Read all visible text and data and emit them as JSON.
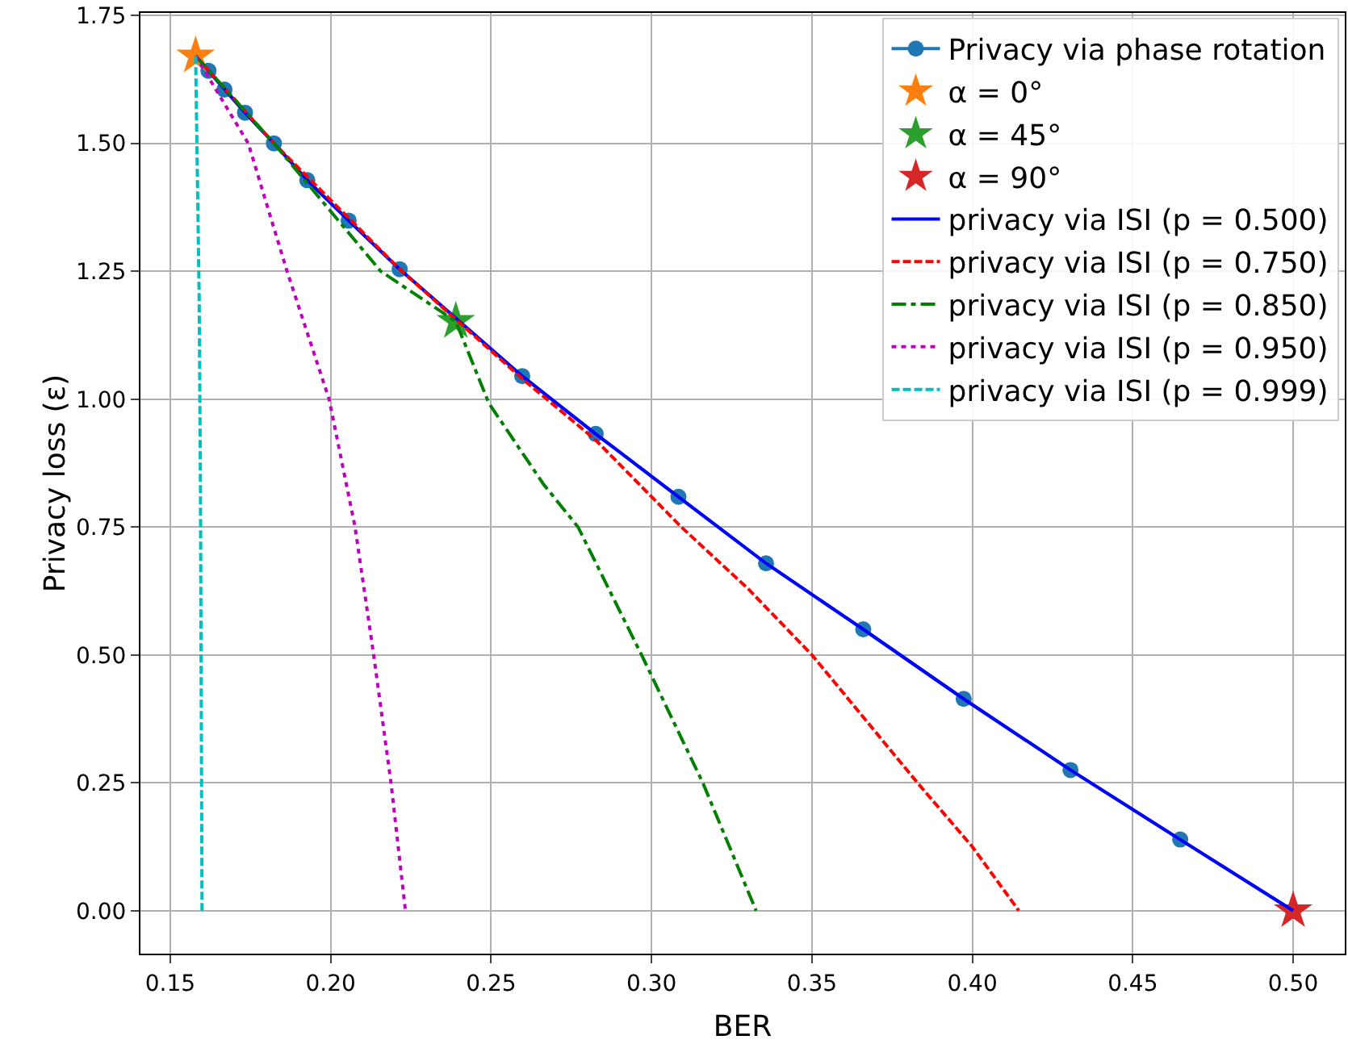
{
  "chart_data": {
    "type": "line",
    "xlabel": "BER",
    "ylabel": "Privacy loss (ε)",
    "xlim": [
      0.1407,
      0.5161
    ],
    "ylim": [
      -0.084,
      1.755
    ],
    "xticks": [
      0.15,
      {
        "value": 0.2,
        "label": "0.20"
      },
      0.25,
      {
        "value": 0.3,
        "label": "0.30"
      },
      0.35,
      {
        "value": 0.4,
        "label": "0.40"
      },
      0.45,
      {
        "value": 0.5,
        "label": "0.50"
      }
    ],
    "yticks": [
      {
        "value": 0,
        "label": "0.00"
      },
      {
        "value": 0.25,
        "label": "0.25"
      },
      {
        "value": 0.5,
        "label": "0.50"
      },
      {
        "value": 0.75,
        "label": "0.75"
      },
      {
        "value": 1,
        "label": "1.00"
      },
      {
        "value": 1.25,
        "label": "1.25"
      },
      {
        "value": 1.5,
        "label": "1.50"
      },
      {
        "value": 1.75,
        "label": "1.75"
      }
    ],
    "grid": true,
    "legend": "top right",
    "series": [
      {
        "name": "Privacy via phase rotation",
        "color": "#1f77b4",
        "marker": "circle",
        "line_style": "solid",
        "x": [
          0.1619,
          0.1669,
          0.1733,
          0.1823,
          0.1927,
          0.2056,
          0.2215,
          0.2597,
          0.2826,
          0.3084,
          0.3357,
          0.366,
          0.3973,
          0.4306,
          0.4648,
          0.5
        ],
        "values": [
          1.642,
          1.605,
          1.56,
          1.5,
          1.428,
          1.349,
          1.254,
          1.045,
          0.932,
          0.809,
          0.679,
          0.55,
          0.414,
          0.275,
          0.139,
          0
        ]
      },
      {
        "name": "α = 0°",
        "type": "scatter",
        "color": "#ff7f0e",
        "marker": "star",
        "x": [
          0.1579
        ],
        "values": [
          1.671
        ]
      },
      {
        "name": "α = 45°",
        "type": "scatter",
        "color": "#2ca02c",
        "marker": "star",
        "x": [
          0.239
        ],
        "values": [
          1.152
        ]
      },
      {
        "name": "α = 90°",
        "type": "scatter",
        "color": "#d62728",
        "marker": "star",
        "x": [
          0.5
        ],
        "values": [
          0
        ]
      },
      {
        "name": "privacy via ISI (p = 0.500)",
        "color": "#0000ff",
        "marker": "none",
        "line_style": "solid",
        "x": [
          0.1579,
          0.1619,
          0.1733,
          0.1823,
          0.1927,
          0.2056,
          0.2215,
          0.2597,
          0.2826,
          0.3084,
          0.3357,
          0.366,
          0.3973,
          0.4306,
          0.4648,
          0.5
        ],
        "values": [
          1.671,
          1.642,
          1.56,
          1.5,
          1.428,
          1.349,
          1.254,
          1.045,
          0.932,
          0.809,
          0.679,
          0.55,
          0.414,
          0.275,
          0.139,
          0
        ]
      },
      {
        "name": "privacy via ISI (p = 0.750)",
        "color": "#ff0000",
        "marker": "none",
        "line_style": "dashed",
        "x": [
          0.1579,
          0.1823,
          0.2215,
          0.2597,
          0.2826,
          0.3093,
          0.33,
          0.35,
          0.3829,
          0.4,
          0.4145
        ],
        "values": [
          1.671,
          1.5,
          1.254,
          1.04,
          0.92,
          0.75,
          0.63,
          0.5,
          0.25,
          0.125,
          0
        ]
      },
      {
        "name": "privacy via ISI (p = 0.850)",
        "color": "#008000",
        "marker": "none",
        "line_style": "dashdot",
        "x": [
          0.1579,
          0.1823,
          0.2156,
          0.239,
          0.2493,
          0.2663,
          0.2771,
          0.2969,
          0.316,
          0.3326
        ],
        "values": [
          1.671,
          1.5,
          1.25,
          1.152,
          0.992,
          0.834,
          0.75,
          0.5,
          0.25,
          0
        ]
      },
      {
        "name": "privacy via ISI (p = 0.950)",
        "color": "#bf00bf",
        "marker": "none",
        "line_style": "dotted",
        "x": [
          0.1579,
          0.1743,
          0.1864,
          0.1995,
          0.2076,
          0.2134,
          0.2188,
          0.2233
        ],
        "values": [
          1.671,
          1.5,
          1.25,
          1.0,
          0.75,
          0.5,
          0.25,
          0
        ]
      },
      {
        "name": "privacy via ISI (p = 0.999)",
        "color": "#00bfbf",
        "marker": "none",
        "line_style": "dashed",
        "x": [
          0.1579,
          0.159,
          0.1594,
          0.1599
        ],
        "values": [
          1.671,
          1.2,
          0.834,
          0
        ]
      }
    ]
  }
}
